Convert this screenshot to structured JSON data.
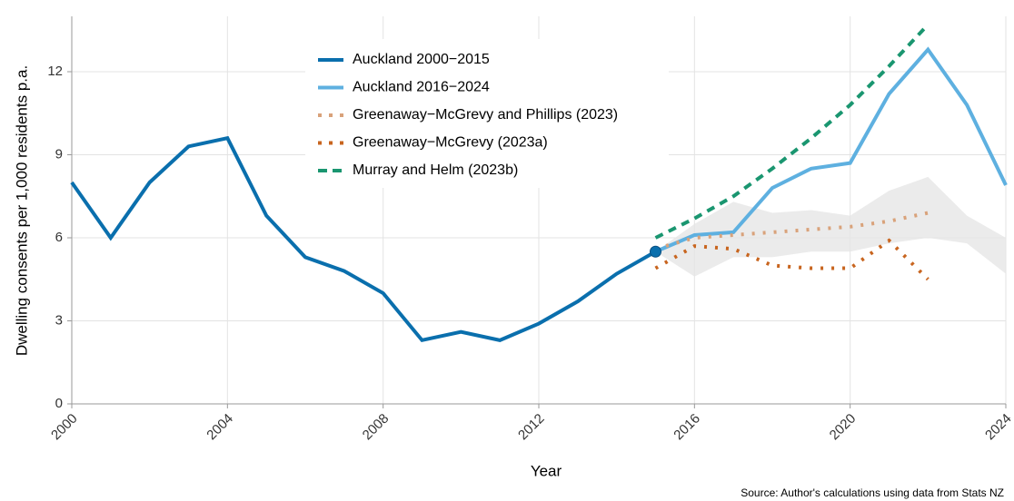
{
  "chart_data": {
    "type": "line",
    "y_label": "Dwelling consents per 1,000 residents p.a.",
    "x_label": "Year",
    "source": "Source: Author's calculations using data from Stats NZ",
    "x": [
      2000,
      2001,
      2002,
      2003,
      2004,
      2005,
      2006,
      2007,
      2008,
      2009,
      2010,
      2011,
      2012,
      2013,
      2014,
      2015,
      2016,
      2017,
      2018,
      2019,
      2020,
      2021,
      2022,
      2023,
      2024
    ],
    "xlim": [
      2000,
      2024
    ],
    "xticks": [
      2000,
      2004,
      2008,
      2012,
      2016,
      2020,
      2024
    ],
    "ylim": [
      0,
      14
    ],
    "yticks": [
      0,
      3,
      6,
      9,
      12
    ],
    "grid": true,
    "band": {
      "color": "#e6e6e6",
      "lower": [
        null,
        null,
        null,
        null,
        null,
        null,
        null,
        null,
        null,
        null,
        null,
        null,
        null,
        null,
        null,
        5.5,
        4.6,
        5.3,
        5.3,
        5.5,
        5.5,
        5.8,
        6.0,
        5.8,
        4.7
      ],
      "upper": [
        null,
        null,
        null,
        null,
        null,
        null,
        null,
        null,
        null,
        null,
        null,
        null,
        null,
        null,
        null,
        5.5,
        6.5,
        7.3,
        6.9,
        7.0,
        6.8,
        7.7,
        8.2,
        6.8,
        6.0
      ]
    },
    "series": [
      {
        "name": "Auckland 2000−2015",
        "color": "#0a6fad",
        "dash": "solid",
        "values": [
          8.0,
          6.0,
          8.0,
          9.3,
          9.6,
          6.8,
          5.3,
          4.8,
          4.0,
          2.3,
          2.6,
          2.3,
          2.9,
          3.7,
          4.7,
          5.5,
          null,
          null,
          null,
          null,
          null,
          null,
          null,
          null,
          null
        ]
      },
      {
        "name": "Auckland 2016−2024",
        "color": "#5eb0e0",
        "dash": "solid",
        "values": [
          null,
          null,
          null,
          null,
          null,
          null,
          null,
          null,
          null,
          null,
          null,
          null,
          null,
          null,
          null,
          5.5,
          6.1,
          6.2,
          7.8,
          8.5,
          8.7,
          11.2,
          12.8,
          10.8,
          7.9
        ]
      },
      {
        "name": "Greenaway−McGrevy and Phillips (2023)",
        "color": "#d9a27a",
        "dash": "dotted",
        "values": [
          null,
          null,
          null,
          null,
          null,
          null,
          null,
          null,
          null,
          null,
          null,
          null,
          null,
          null,
          null,
          5.6,
          6.0,
          6.1,
          6.2,
          6.3,
          6.4,
          6.6,
          6.9,
          null,
          null
        ]
      },
      {
        "name": "Greenaway−McGrevy (2023a)",
        "color": "#c8651f",
        "dash": "dotted",
        "values": [
          null,
          null,
          null,
          null,
          null,
          null,
          null,
          null,
          null,
          null,
          null,
          null,
          null,
          null,
          null,
          4.9,
          5.7,
          5.6,
          5.0,
          4.9,
          4.9,
          5.9,
          4.5,
          null,
          null
        ]
      },
      {
        "name": "Murray and Helm (2023b)",
        "color": "#1a9670",
        "dash": "dashed",
        "values": [
          null,
          null,
          null,
          null,
          null,
          null,
          null,
          null,
          null,
          null,
          null,
          null,
          null,
          null,
          null,
          6.0,
          6.7,
          7.5,
          8.5,
          9.6,
          10.8,
          12.2,
          13.7,
          null,
          null
        ]
      }
    ]
  }
}
